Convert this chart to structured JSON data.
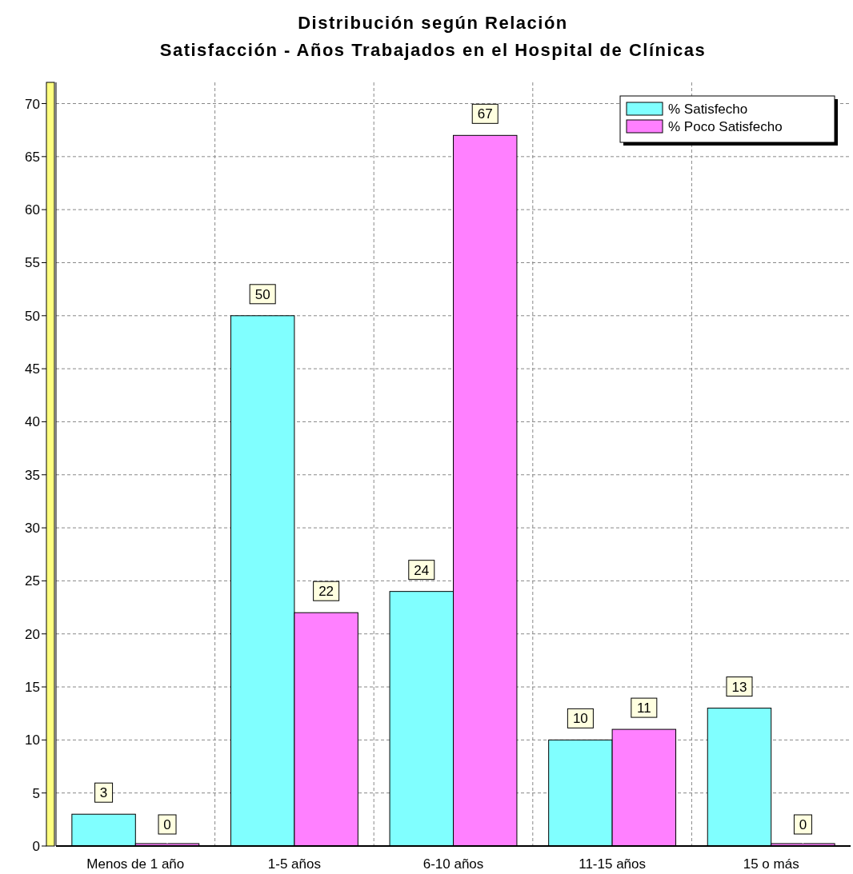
{
  "chart_data": {
    "type": "bar",
    "title": "Distribución según Relación\nSatisfacción - Años Trabajados en el Hospital de Clínicas",
    "categories": [
      "Menos de 1 año",
      "1-5 años",
      "6-10 años",
      "11-15 años",
      "15 o más"
    ],
    "series": [
      {
        "name": "% Satisfecho",
        "color": "#80ffff",
        "values": [
          3,
          50,
          24,
          10,
          13
        ]
      },
      {
        "name": "% Poco Satisfecho",
        "color": "#ff80ff",
        "values": [
          0,
          22,
          67,
          11,
          0
        ]
      }
    ],
    "ylim": [
      0,
      72
    ],
    "yticks": [
      0,
      5,
      10,
      15,
      20,
      25,
      30,
      35,
      40,
      45,
      50,
      55,
      60,
      65,
      70
    ],
    "grid": true,
    "legend": "top right",
    "data_labels": true
  }
}
